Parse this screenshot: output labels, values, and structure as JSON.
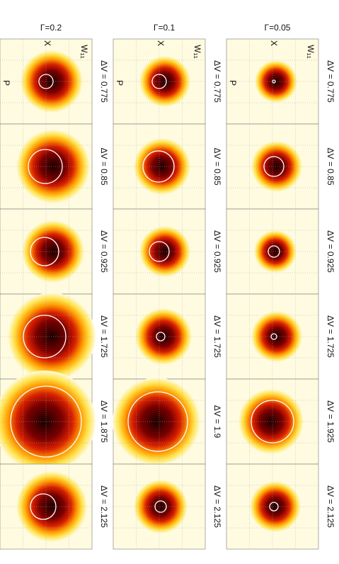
{
  "columns": [
    {
      "title": "Γ=0.2",
      "panels": [
        "ΔV = 0.775",
        "ΔV =  0.85",
        "ΔV = 0.925",
        "ΔV = 1.725",
        "ΔV = 1.875",
        "ΔV = 2.125"
      ]
    },
    {
      "title": "Γ=0.1",
      "panels": [
        "ΔV = 0.775",
        "ΔV = 0.85",
        "ΔV = 0.925",
        "ΔV = 1.725",
        "ΔV = 1.9",
        "ΔV = 2.125"
      ]
    },
    {
      "title": "Γ=0.05",
      "panels": [
        "ΔV = 0.775",
        "ΔV = 0.85",
        "ΔV = 0.925",
        "ΔV = 1.725",
        "ΔV = 1.925",
        "ΔV = 2.125"
      ]
    }
  ],
  "axis_labels": {
    "w": "W₁₁",
    "x": "X",
    "p": "P"
  }
}
